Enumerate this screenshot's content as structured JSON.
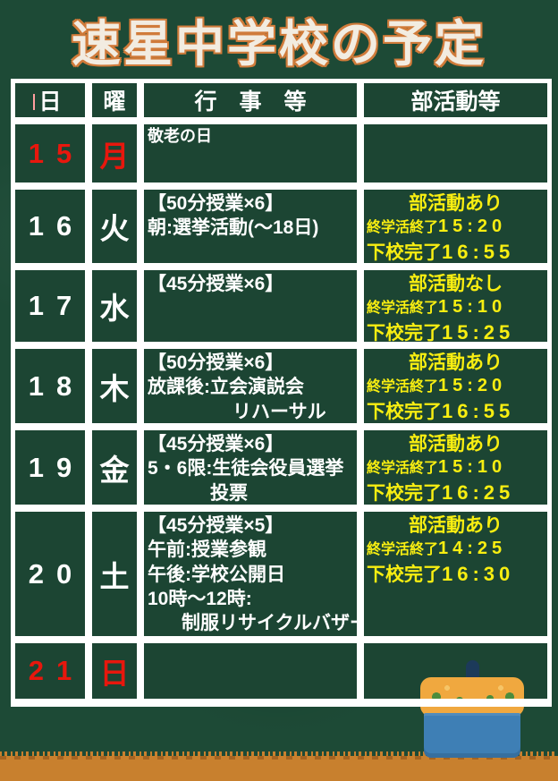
{
  "title": "速星中学校の予定",
  "colors": {
    "board-green": "#1d4a36",
    "cell-green": "#1c4533",
    "title-cream": "#f2ece1",
    "title-outline": "#d07b3a",
    "red": "#e8170d",
    "yellow": "#f8ee11",
    "ground-orange": "#c8802e",
    "basket-blue": "#3e7fb5",
    "flower-yellow": "#f0a83f",
    "dot-green": "#4d8c3c",
    "handle-navy": "#1c3a5a"
  },
  "table": {
    "headers": {
      "day": "日",
      "weekday": "曜",
      "events": "行　事　等",
      "club": "部活動等"
    },
    "rows": [
      {
        "day": "15",
        "weekday": "月",
        "highlight": "red",
        "events": [
          "敬老の日"
        ],
        "club": null
      },
      {
        "day": "16",
        "weekday": "火",
        "highlight": "none",
        "events": [
          "【50分授業×6】",
          "朝:選挙活動(～18日)"
        ],
        "club": {
          "status": "部活動あり",
          "end_label": "終学活終了",
          "end_time": "15:20",
          "leave_label": "下校完了",
          "leave_time": "16:55"
        }
      },
      {
        "day": "17",
        "weekday": "水",
        "highlight": "none",
        "events": [
          "【45分授業×6】"
        ],
        "club": {
          "status": "部活動なし",
          "end_label": "終学活終了",
          "end_time": "15:10",
          "leave_label": "下校完了",
          "leave_time": "15:25"
        }
      },
      {
        "day": "18",
        "weekday": "木",
        "highlight": "none",
        "events": [
          "【50分授業×6】",
          "放課後:立会演説会",
          "リハーサル"
        ],
        "club": {
          "status": "部活動あり",
          "end_label": "終学活終了",
          "end_time": "15:20",
          "leave_label": "下校完了",
          "leave_time": "16:55"
        }
      },
      {
        "day": "19",
        "weekday": "金",
        "highlight": "none",
        "events": [
          "【45分授業×6】",
          "5・6限:生徒会役員選挙",
          "投票"
        ],
        "club": {
          "status": "部活動あり",
          "end_label": "終学活終了",
          "end_time": "15:10",
          "leave_label": "下校完了",
          "leave_time": "16:25"
        }
      },
      {
        "day": "20",
        "weekday": "土",
        "highlight": "none",
        "events": [
          "【45分授業×5】",
          "午前:授業参観",
          "午後:学校公開日",
          "10時～12時:",
          "制服リサイクルバザー"
        ],
        "club": {
          "status": "部活動あり",
          "end_label": "終学活終了",
          "end_time": "14:25",
          "leave_label": "下校完了",
          "leave_time": "16:30"
        }
      },
      {
        "day": "21",
        "weekday": "日",
        "highlight": "red",
        "events": [],
        "club": null
      }
    ]
  }
}
